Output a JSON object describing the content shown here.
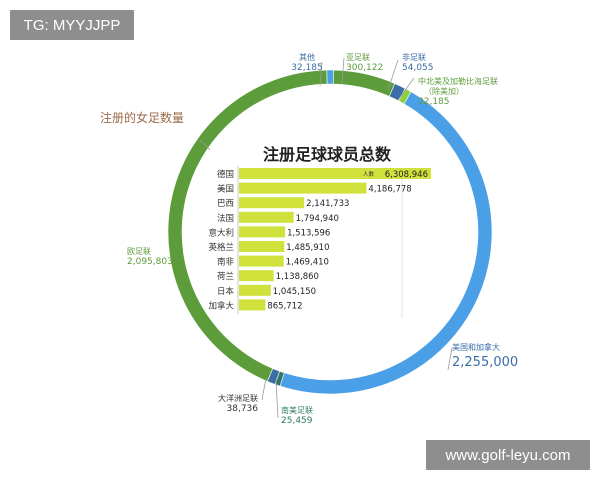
{
  "watermarks": {
    "top_left": "TG: MYYJJPP",
    "bottom_right": "www.golf-leyu.com"
  },
  "chart_data": [
    {
      "type": "pie",
      "donut": true,
      "title": "注册的女足数量",
      "slices": [
        {
          "label": "其他",
          "value": "32,185",
          "color": "#4a9fe6"
        },
        {
          "label": "亚足联",
          "value": "300,122",
          "color": "#5d9c3a"
        },
        {
          "label": "非足联",
          "value": "54,055",
          "color": "#3a6ea5"
        },
        {
          "label": "中北美及加勒比海足联（除美加）",
          "value": "32,185",
          "color": "#8ccf3f"
        },
        {
          "label": "美国和加拿大",
          "value": "2,255,000",
          "color": "#4a9fe6"
        },
        {
          "label": "南美足联",
          "value": "25,459",
          "color": "#2f7a67"
        },
        {
          "label": "大洋洲足联",
          "value": "38,736",
          "color": "#3a6ea5"
        },
        {
          "label": "欧足联",
          "value": "2,095,803",
          "color": "#5d9c3a"
        }
      ]
    },
    {
      "type": "bar",
      "orientation": "horizontal",
      "title": "注册足球球员总数",
      "bar_color": "#cfe13a",
      "series_note": "人数",
      "categories": [
        "德国",
        "美国",
        "巴西",
        "法国",
        "意大利",
        "英格兰",
        "南非",
        "荷兰",
        "日本",
        "加拿大"
      ],
      "values": [
        6308946,
        4186778,
        2141733,
        1794940,
        1513596,
        1485910,
        1469410,
        1138860,
        1045150,
        865712
      ],
      "value_labels": [
        "6,308,946",
        "4,186,778",
        "2,141,733",
        "1,794,940",
        "1,513,596",
        "1,485,910",
        "1,469,410",
        "1,138,860",
        "1,045,150",
        "865,712"
      ]
    }
  ]
}
